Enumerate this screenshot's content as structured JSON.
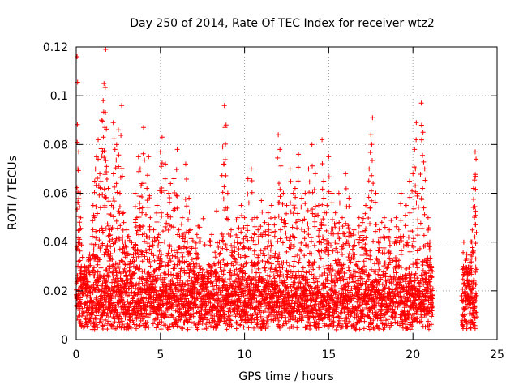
{
  "colors": {
    "series": "#ff0000",
    "grid": "#a0a0a0",
    "axis": "#000000"
  },
  "chart_data": {
    "type": "scatter",
    "title": "Day 250 of 2014, Rate Of TEC Index for receiver wtz2",
    "xlabel": "GPS time / hours",
    "ylabel": "ROTI / TECUs",
    "xlim": [
      0,
      25
    ],
    "ylim": [
      0,
      0.12
    ],
    "xticks": [
      0,
      5,
      10,
      15,
      20,
      25
    ],
    "xtick_labels": [
      "0",
      "5",
      "10",
      "15",
      "20",
      "25"
    ],
    "yticks": [
      0,
      0.02,
      0.04,
      0.06,
      0.08,
      0.1,
      0.12
    ],
    "ytick_labels": [
      "0",
      "0.02",
      "0.04",
      "0.06",
      "0.08",
      "0.1",
      "0.12"
    ],
    "grid": true,
    "marker": "+",
    "series": [
      {
        "points": [
          [
            0.05,
            0.116
          ],
          [
            0.1,
            0.07
          ],
          [
            0.15,
            0.077
          ],
          [
            0.2,
            0.045
          ],
          [
            0.25,
            0.06
          ],
          [
            0.3,
            0.03
          ],
          [
            0.45,
            0.025
          ],
          [
            0.6,
            0.02
          ],
          [
            0.8,
            0.035
          ],
          [
            1.0,
            0.055
          ],
          [
            1.1,
            0.065
          ],
          [
            1.2,
            0.075
          ],
          [
            1.3,
            0.082
          ],
          [
            1.4,
            0.068
          ],
          [
            1.5,
            0.09
          ],
          [
            1.6,
            0.098
          ],
          [
            1.65,
            0.105
          ],
          [
            1.7,
            0.087
          ],
          [
            1.75,
            0.119
          ],
          [
            1.8,
            0.071
          ],
          [
            1.9,
            0.062
          ],
          [
            2.0,
            0.045
          ],
          [
            2.1,
            0.055
          ],
          [
            2.2,
            0.089
          ],
          [
            2.3,
            0.078
          ],
          [
            2.4,
            0.08
          ],
          [
            2.5,
            0.086
          ],
          [
            2.6,
            0.06
          ],
          [
            2.7,
            0.096
          ],
          [
            2.8,
            0.052
          ],
          [
            2.9,
            0.04
          ],
          [
            3.0,
            0.045
          ],
          [
            3.2,
            0.032
          ],
          [
            3.4,
            0.035
          ],
          [
            3.5,
            0.06
          ],
          [
            3.6,
            0.05
          ],
          [
            3.7,
            0.075
          ],
          [
            3.8,
            0.07
          ],
          [
            3.9,
            0.064
          ],
          [
            4.0,
            0.087
          ],
          [
            4.2,
            0.062
          ],
          [
            4.3,
            0.075
          ],
          [
            4.4,
            0.05
          ],
          [
            4.6,
            0.045
          ],
          [
            4.8,
            0.055
          ],
          [
            4.9,
            0.04
          ],
          [
            5.0,
            0.077
          ],
          [
            5.1,
            0.083
          ],
          [
            5.3,
            0.072
          ],
          [
            5.5,
            0.06
          ],
          [
            5.6,
            0.064
          ],
          [
            5.8,
            0.066
          ],
          [
            6.0,
            0.078
          ],
          [
            6.1,
            0.045
          ],
          [
            6.3,
            0.05
          ],
          [
            6.5,
            0.072
          ],
          [
            6.6,
            0.04
          ],
          [
            6.7,
            0.058
          ],
          [
            6.8,
            0.045
          ],
          [
            7.0,
            0.03
          ],
          [
            7.2,
            0.025
          ],
          [
            7.5,
            0.022
          ],
          [
            7.8,
            0.025
          ],
          [
            8.0,
            0.03
          ],
          [
            8.3,
            0.028
          ],
          [
            8.5,
            0.04
          ],
          [
            8.7,
            0.079
          ],
          [
            8.8,
            0.096
          ],
          [
            8.9,
            0.088
          ],
          [
            9.0,
            0.06
          ],
          [
            9.2,
            0.045
          ],
          [
            9.4,
            0.04
          ],
          [
            9.6,
            0.05
          ],
          [
            9.8,
            0.055
          ],
          [
            10.0,
            0.05
          ],
          [
            10.2,
            0.066
          ],
          [
            10.4,
            0.07
          ],
          [
            10.6,
            0.05
          ],
          [
            10.8,
            0.045
          ],
          [
            11.0,
            0.057
          ],
          [
            11.2,
            0.048
          ],
          [
            11.4,
            0.052
          ],
          [
            11.6,
            0.055
          ],
          [
            11.8,
            0.05
          ],
          [
            12.0,
            0.084
          ],
          [
            12.1,
            0.078
          ],
          [
            12.3,
            0.06
          ],
          [
            12.5,
            0.055
          ],
          [
            12.7,
            0.07
          ],
          [
            12.9,
            0.06
          ],
          [
            13.0,
            0.062
          ],
          [
            13.2,
            0.076
          ],
          [
            13.4,
            0.058
          ],
          [
            13.6,
            0.06
          ],
          [
            13.8,
            0.07
          ],
          [
            14.0,
            0.08
          ],
          [
            14.2,
            0.068
          ],
          [
            14.4,
            0.055
          ],
          [
            14.6,
            0.082
          ],
          [
            14.7,
            0.065
          ],
          [
            14.9,
            0.055
          ],
          [
            15.0,
            0.075
          ],
          [
            15.2,
            0.06
          ],
          [
            15.4,
            0.052
          ],
          [
            15.6,
            0.06
          ],
          [
            15.8,
            0.05
          ],
          [
            16.0,
            0.068
          ],
          [
            16.2,
            0.058
          ],
          [
            16.5,
            0.045
          ],
          [
            16.8,
            0.05
          ],
          [
            17.0,
            0.048
          ],
          [
            17.2,
            0.055
          ],
          [
            17.4,
            0.07
          ],
          [
            17.5,
            0.084
          ],
          [
            17.6,
            0.091
          ],
          [
            17.8,
            0.06
          ],
          [
            18.0,
            0.045
          ],
          [
            18.3,
            0.05
          ],
          [
            18.6,
            0.045
          ],
          [
            19.0,
            0.05
          ],
          [
            19.3,
            0.06
          ],
          [
            19.6,
            0.055
          ],
          [
            19.8,
            0.065
          ],
          [
            20.0,
            0.068
          ],
          [
            20.1,
            0.078
          ],
          [
            20.2,
            0.089
          ],
          [
            20.3,
            0.06
          ],
          [
            20.5,
            0.097
          ],
          [
            20.6,
            0.085
          ],
          [
            20.7,
            0.07
          ],
          [
            20.9,
            0.05
          ],
          [
            21.0,
            0.04
          ],
          [
            21.1,
            0.03
          ],
          [
            23.0,
            0.03
          ],
          [
            23.2,
            0.035
          ],
          [
            23.4,
            0.033
          ],
          [
            23.5,
            0.04
          ],
          [
            23.6,
            0.062
          ],
          [
            23.7,
            0.077
          ],
          [
            23.75,
            0.074
          ]
        ],
        "baseline": {
          "segments": [
            [
              0.0,
              21.2
            ],
            [
              22.9,
              23.8
            ]
          ],
          "center": 0.016,
          "spread": 0.009,
          "min": 0.004,
          "points_per_hour": 160
        }
      }
    ]
  }
}
